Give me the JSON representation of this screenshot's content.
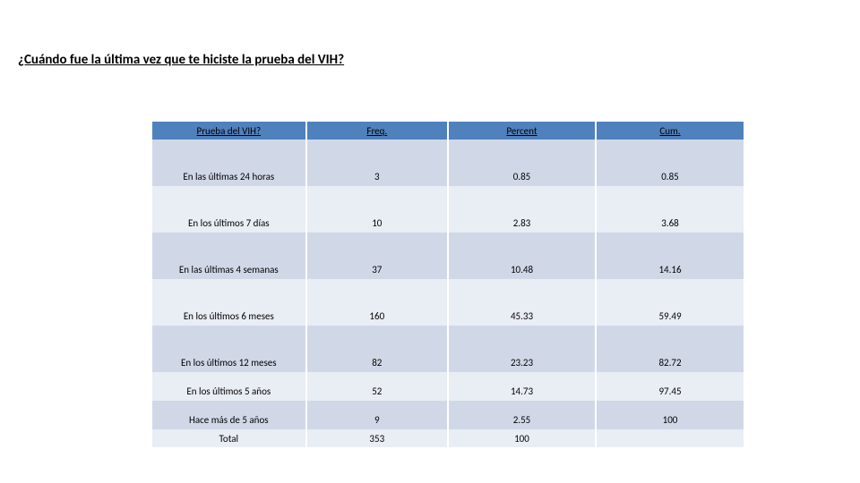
{
  "title": "¿Cuándo fue la última vez que te hiciste la prueba del VIH?",
  "table": {
    "header_bg": "#4f81bd",
    "row_bg_a": "#d0d8e8",
    "row_bg_b": "#e9edf4",
    "text_color": "#000000",
    "font_size_header": 11,
    "font_size_cell": 11,
    "columns": [
      {
        "label": "Prueba del VIH?",
        "key": "cat",
        "width_pct": 26
      },
      {
        "label": "Freq.",
        "key": "freq",
        "width_pct": 24
      },
      {
        "label": "Percent",
        "key": "pct",
        "width_pct": 25
      },
      {
        "label": "Cum.",
        "key": "cum",
        "width_pct": 25
      }
    ],
    "rows": [
      {
        "cat": "En las últimas 24 horas",
        "freq": "3",
        "pct": "0.85",
        "cum": "0.85",
        "tall": true
      },
      {
        "cat": "En los últimos 7 días",
        "freq": "10",
        "pct": "2.83",
        "cum": "3.68",
        "tall": true
      },
      {
        "cat": "En las últimas 4 semanas",
        "freq": "37",
        "pct": "10.48",
        "cum": "14.16",
        "tall": true
      },
      {
        "cat": "En los últimos 6 meses",
        "freq": "160",
        "pct": "45.33",
        "cum": "59.49",
        "tall": true
      },
      {
        "cat": "En los últimos 12 meses",
        "freq": "82",
        "pct": "23.23",
        "cum": "82.72",
        "tall": true
      },
      {
        "cat": "En los últimos 5 años",
        "freq": "52",
        "pct": "14.73",
        "cum": "97.45",
        "tall": false
      },
      {
        "cat": "Hace más de 5 años",
        "freq": "9",
        "pct": "2.55",
        "cum": "100",
        "tall": false
      },
      {
        "cat": "Total",
        "freq": "353",
        "pct": "100",
        "cum": "",
        "tall": false,
        "last": true
      }
    ]
  }
}
